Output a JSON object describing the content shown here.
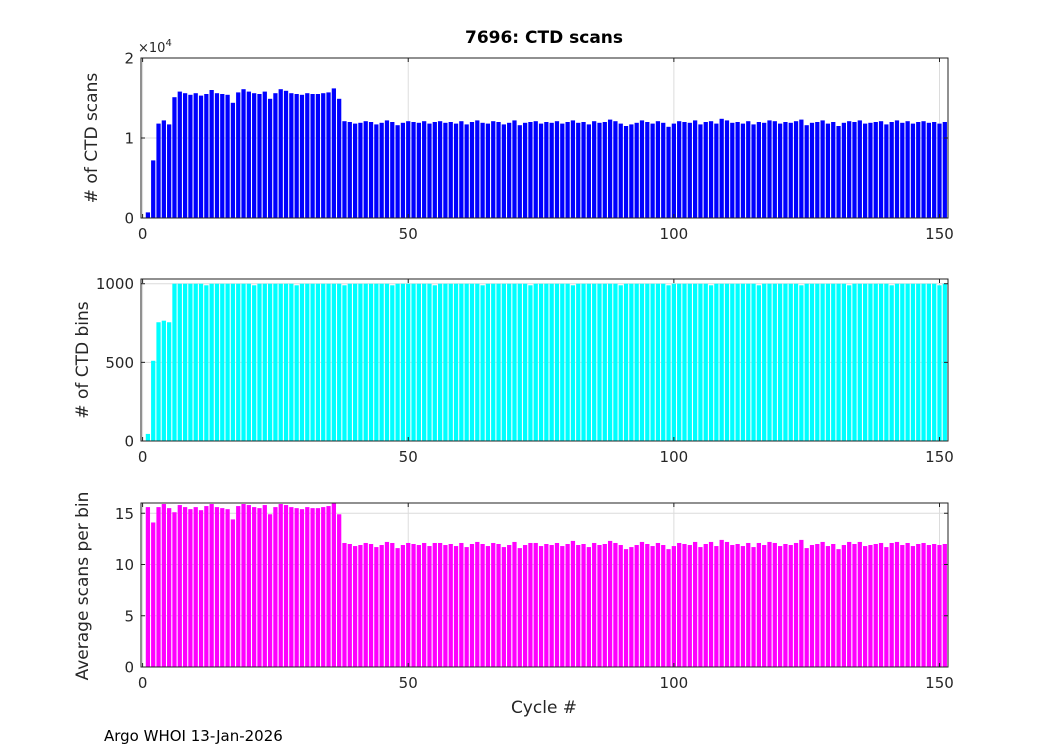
{
  "figure": {
    "title": "7696: CTD scans",
    "footer": "Argo WHOI 13-Jan-2026",
    "background": "#ffffff",
    "axis_color": "#222222",
    "grid_color": "#dcdcdc",
    "tick_label_color": "#262626"
  },
  "chart_data": [
    {
      "type": "bar",
      "title": "7696: CTD scans",
      "ylabel": "# of CTD scans",
      "bar_color": "#0000ff",
      "ylim": [
        0,
        20000
      ],
      "yticks": [
        0,
        10000,
        20000
      ],
      "ytick_labels": [
        "0",
        "1",
        "2"
      ],
      "exponent": {
        "prefix": "×10",
        "power": "4"
      },
      "xticks": [
        0,
        50,
        100,
        150
      ],
      "xtick_labels": [
        "0",
        "50",
        "100",
        "150"
      ],
      "x_start_cycle": 1,
      "values": [
        700,
        7200,
        11800,
        12200,
        11700,
        15100,
        15800,
        15600,
        15400,
        15600,
        15300,
        15500,
        16000,
        15600,
        15500,
        15400,
        14400,
        15700,
        16100,
        15800,
        15600,
        15500,
        15800,
        14900,
        15600,
        16100,
        15900,
        15600,
        15500,
        15400,
        15600,
        15500,
        15500,
        15600,
        15700,
        16200,
        14900,
        12100,
        12000,
        11800,
        11900,
        12100,
        12000,
        11700,
        11900,
        12200,
        12000,
        11600,
        11900,
        12100,
        12000,
        11900,
        12100,
        11800,
        12000,
        12100,
        11900,
        12000,
        11800,
        12100,
        11700,
        12000,
        12200,
        11900,
        11800,
        12100,
        12000,
        11700,
        11900,
        12200,
        11600,
        11900,
        12000,
        12100,
        11800,
        12000,
        11900,
        12100,
        11800,
        12000,
        12200,
        11900,
        12000,
        11700,
        12100,
        11900,
        12000,
        12300,
        12100,
        11800,
        11500,
        11700,
        11900,
        12200,
        12000,
        11800,
        12100,
        11900,
        11400,
        11800,
        12100,
        12000,
        11900,
        12200,
        11700,
        12000,
        12100,
        11800,
        12400,
        12200,
        11900,
        12000,
        11800,
        12100,
        11700,
        12000,
        11900,
        12200,
        12100,
        11800,
        12000,
        11900,
        12100,
        12300,
        11600,
        11900,
        12000,
        12200,
        11800,
        12000,
        11500,
        11900,
        12100,
        12000,
        12200,
        11800,
        11900,
        12000,
        12100,
        11700,
        12000,
        12200,
        11900,
        12100,
        11800,
        12000,
        12100,
        11900,
        12000,
        11800,
        12000
      ]
    },
    {
      "type": "bar",
      "ylabel": "# of CTD bins",
      "bar_color": "#00ffff",
      "ylim": [
        0,
        1030
      ],
      "yticks": [
        0,
        500,
        1000
      ],
      "ytick_labels": [
        "0",
        "500",
        "1000"
      ],
      "xticks": [
        0,
        50,
        100,
        150
      ],
      "xtick_labels": [
        "0",
        "50",
        "100",
        "150"
      ],
      "x_start_cycle": 1,
      "values": [
        45,
        510,
        755,
        765,
        755,
        1000,
        1000,
        1000,
        1000,
        1000,
        1000,
        990,
        1000,
        1000,
        1000,
        1000,
        1000,
        1000,
        1000,
        1000,
        990,
        1000,
        1000,
        1000,
        1000,
        1000,
        1000,
        1000,
        990,
        1000,
        1000,
        1000,
        1000,
        1000,
        1000,
        1000,
        1000,
        990,
        1000,
        1000,
        1000,
        1000,
        1000,
        1000,
        1000,
        1000,
        990,
        1000,
        1000,
        1000,
        1000,
        1000,
        1000,
        1000,
        990,
        1000,
        1000,
        1000,
        1000,
        1000,
        1000,
        1000,
        1000,
        990,
        1000,
        1000,
        1000,
        1000,
        1000,
        1000,
        1000,
        1000,
        990,
        1000,
        1000,
        1000,
        1000,
        1000,
        1000,
        1000,
        990,
        1000,
        1000,
        1000,
        1000,
        1000,
        1000,
        1000,
        1000,
        990,
        1000,
        1000,
        1000,
        1000,
        1000,
        1000,
        1000,
        1000,
        990,
        1000,
        1000,
        1000,
        1000,
        1000,
        1000,
        1000,
        990,
        1000,
        1000,
        1000,
        1000,
        1000,
        1000,
        1000,
        1000,
        990,
        1000,
        1000,
        1000,
        1000,
        1000,
        1000,
        1000,
        990,
        1000,
        1000,
        1000,
        1000,
        1000,
        1000,
        1000,
        1000,
        990,
        1000,
        1000,
        1000,
        1000,
        1000,
        1000,
        1000,
        990,
        1000,
        1000,
        1000,
        1000,
        1000,
        1000,
        1000,
        1000,
        990,
        1000
      ]
    },
    {
      "type": "bar",
      "ylabel": "Average scans per bin",
      "xlabel": "Cycle #",
      "bar_color": "#ff00ff",
      "ylim": [
        0,
        16
      ],
      "yticks": [
        0,
        5,
        10,
        15
      ],
      "ytick_labels": [
        "0",
        "5",
        "10",
        "15"
      ],
      "xticks": [
        0,
        50,
        100,
        150
      ],
      "xtick_labels": [
        "0",
        "50",
        "100",
        "150"
      ],
      "x_start_cycle": 1,
      "values": [
        15.6,
        14.1,
        15.6,
        15.9,
        15.5,
        15.1,
        15.8,
        15.6,
        15.4,
        15.6,
        15.3,
        15.7,
        15.9,
        15.6,
        15.5,
        15.4,
        14.4,
        15.7,
        15.9,
        15.8,
        15.6,
        15.5,
        15.8,
        14.9,
        15.6,
        15.9,
        15.8,
        15.6,
        15.5,
        15.4,
        15.6,
        15.5,
        15.5,
        15.6,
        15.7,
        16.0,
        14.9,
        12.1,
        12.0,
        11.8,
        11.9,
        12.1,
        12.0,
        11.7,
        11.9,
        12.2,
        12.1,
        11.6,
        11.9,
        12.1,
        12.0,
        11.9,
        12.1,
        11.8,
        12.1,
        12.1,
        11.9,
        12.0,
        11.8,
        12.1,
        11.7,
        12.0,
        12.2,
        12.0,
        11.8,
        12.1,
        12.0,
        11.7,
        11.9,
        12.2,
        11.6,
        11.9,
        12.1,
        12.1,
        11.8,
        12.0,
        11.9,
        12.1,
        11.8,
        12.0,
        12.3,
        11.9,
        12.0,
        11.7,
        12.1,
        11.9,
        12.0,
        12.3,
        12.1,
        11.9,
        11.5,
        11.7,
        11.9,
        12.2,
        12.0,
        11.8,
        12.1,
        11.9,
        11.5,
        11.8,
        12.1,
        12.0,
        11.9,
        12.2,
        11.7,
        12.0,
        12.2,
        11.8,
        12.4,
        12.2,
        11.9,
        12.0,
        11.8,
        12.1,
        11.7,
        12.1,
        11.9,
        12.2,
        12.1,
        11.8,
        12.0,
        11.9,
        12.1,
        12.4,
        11.6,
        11.9,
        12.0,
        12.2,
        11.8,
        12.0,
        11.5,
        11.9,
        12.2,
        12.0,
        12.2,
        11.8,
        11.9,
        12.0,
        12.1,
        11.7,
        12.1,
        12.2,
        11.9,
        12.1,
        11.8,
        12.0,
        12.1,
        11.9,
        12.0,
        11.9,
        12.0
      ]
    }
  ]
}
